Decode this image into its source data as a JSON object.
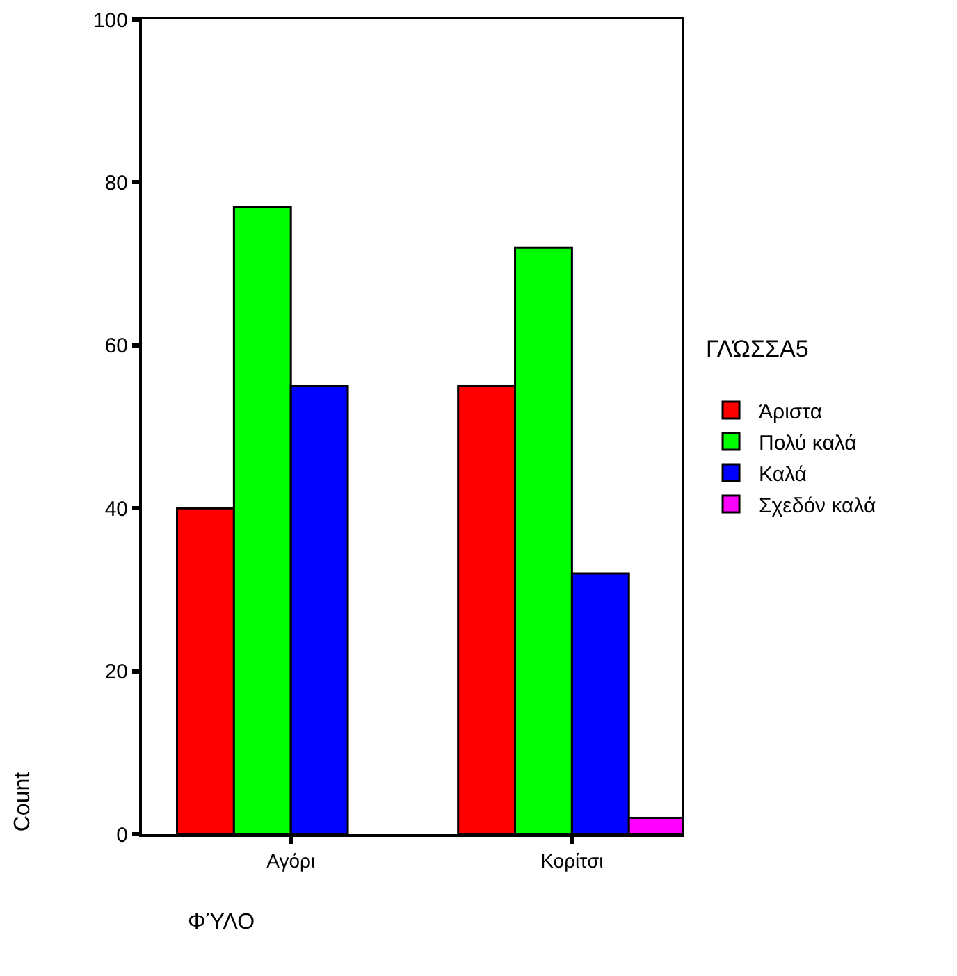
{
  "chart_data": {
    "type": "bar",
    "xlabel": "ΦΎΛΟ",
    "ylabel": "Count",
    "legend_title": "ΓΛΏΣΣΑ5",
    "categories": [
      "Αγόρι",
      "Κορίτσι"
    ],
    "series": [
      {
        "name": "Άριστα",
        "color": "#ff0000",
        "values": [
          40,
          55
        ]
      },
      {
        "name": "Πολύ καλά",
        "color": "#00ff00",
        "values": [
          77,
          72
        ]
      },
      {
        "name": "Καλά",
        "color": "#0000ff",
        "values": [
          55,
          32
        ]
      },
      {
        "name": "Σχεδόν καλά",
        "color": "#ff00ff",
        "values": [
          null,
          2
        ]
      }
    ],
    "ylim": [
      0,
      100
    ],
    "yticks": [
      0,
      20,
      40,
      60,
      80,
      100
    ],
    "grid": false,
    "legend": "right"
  }
}
